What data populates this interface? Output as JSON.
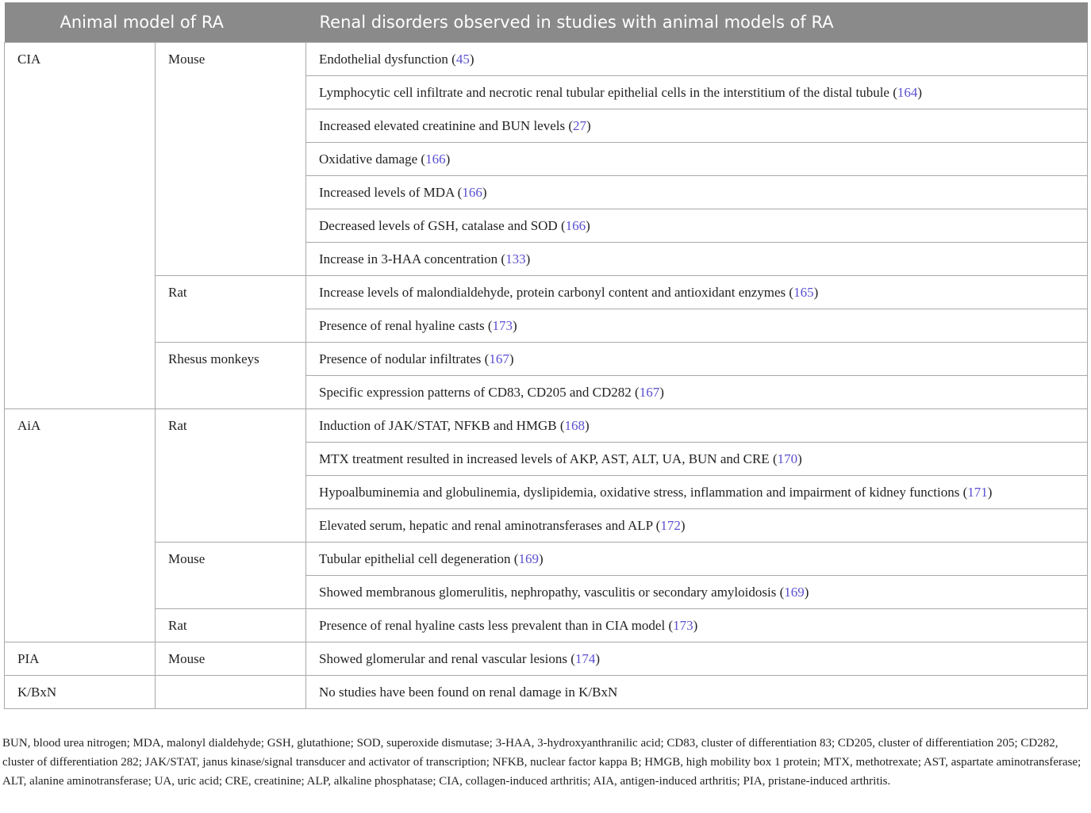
{
  "table": {
    "header": [
      "Animal model of RA",
      "Renal disorders observed in studies with animal models of RA"
    ],
    "groups": [
      {
        "model": "CIA",
        "species": [
          {
            "name": "Mouse",
            "findings": [
              {
                "pre": "Endothelial dysfunction (",
                "ref": "45",
                "post": ")"
              },
              {
                "pre": "Lymphocytic cell infiltrate and necrotic renal tubular epithelial cells in the interstitium of the distal tubule (",
                "ref": "164",
                "post": ")"
              },
              {
                "pre": "Increased elevated creatinine and BUN levels (",
                "ref": "27",
                "post": ")"
              },
              {
                "pre": "Oxidative damage (",
                "ref": "166",
                "post": ")"
              },
              {
                "pre": "Increased levels of MDA (",
                "ref": "166",
                "post": ")"
              },
              {
                "pre": "Decreased levels of GSH, catalase and SOD (",
                "ref": "166",
                "post": ")"
              },
              {
                "pre": "Increase in 3-HAA concentration (",
                "ref": "133",
                "post": ")"
              }
            ]
          },
          {
            "name": "Rat",
            "findings": [
              {
                "pre": "Increase levels of malondialdehyde, protein carbonyl content and antioxidant enzymes (",
                "ref": "165",
                "post": ")"
              },
              {
                "pre": "Presence of renal hyaline casts (",
                "ref": "173",
                "post": ")"
              }
            ]
          },
          {
            "name": "Rhesus monkeys",
            "findings": [
              {
                "pre": "Presence of nodular infiltrates (",
                "ref": "167",
                "post": ")"
              },
              {
                "pre": "Specific expression patterns of CD83, CD205 and CD282 (",
                "ref": "167",
                "post": ")"
              }
            ]
          }
        ]
      },
      {
        "model": "AiA",
        "species": [
          {
            "name": "Rat",
            "findings": [
              {
                "pre": "Induction of JAK/STAT, NFKB and HMGB (",
                "ref": "168",
                "post": ")"
              },
              {
                "pre": "MTX treatment resulted in increased levels of AKP, AST, ALT, UA, BUN and CRE (",
                "ref": "170",
                "post": ")"
              },
              {
                "pre": "Hypoalbuminemia and globulinemia, dyslipidemia, oxidative stress, inflammation and impairment of kidney functions (",
                "ref": "171",
                "post": ")"
              },
              {
                "pre": "Elevated serum, hepatic and renal aminotransferases and ALP (",
                "ref": "172",
                "post": ")"
              }
            ]
          },
          {
            "name": "Mouse",
            "findings": [
              {
                "pre": "Tubular epithelial cell degeneration (",
                "ref": "169",
                "post": ")"
              },
              {
                "pre": "Showed membranous glomerulitis, nephropathy, vasculitis or secondary amyloidosis (",
                "ref": "169",
                "post": ")"
              }
            ]
          },
          {
            "name": "Rat",
            "findings": [
              {
                "pre": "Presence of renal hyaline casts less prevalent than in CIA model (",
                "ref": "173",
                "post": ")"
              }
            ]
          }
        ]
      },
      {
        "model": "PIA",
        "species": [
          {
            "name": "Mouse",
            "findings": [
              {
                "pre": "Showed glomerular and renal vascular lesions (",
                "ref": "174",
                "post": ")"
              }
            ]
          }
        ]
      },
      {
        "model": "K/BxN",
        "species": [
          {
            "name": null,
            "findings": [
              {
                "pre": "No studies have been found on renal damage in K/BxN",
                "ref": null,
                "post": null
              }
            ]
          }
        ]
      }
    ],
    "footnote": "BUN, blood urea nitrogen; MDA, malonyl dialdehyde; GSH, glutathione; SOD, superoxide dismutase; 3-HAA, 3-hydroxyanthranilic acid; CD83, cluster of differentiation 83; CD205, cluster of differentiation 205; CD282, cluster of differentiation 282; JAK/STAT, janus kinase/signal transducer and activator of transcription; NFKB, nuclear factor kappa B; HMGB, high mobility box 1 protein; MTX, methotrexate; AST, aspartate aminotransferase; ALT, alanine aminotransferase; UA, uric acid; CRE, creatinine; ALP, alkaline phosphatase; CIA, collagen-induced arthritis; AIA, antigen-induced arthritis; PIA, pristane-induced arthritis."
  }
}
